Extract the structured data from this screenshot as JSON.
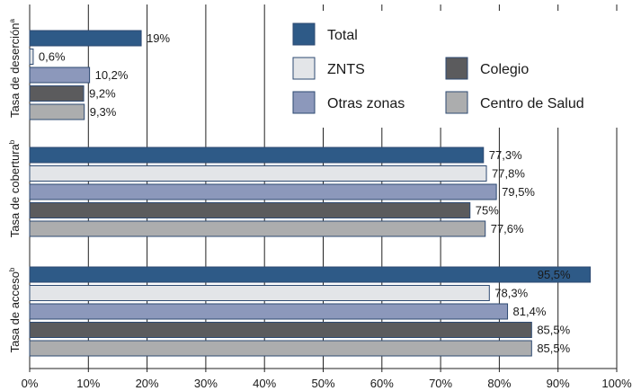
{
  "chart_data": {
    "type": "bar",
    "orientation": "horizontal",
    "xlim": [
      0,
      100
    ],
    "xticks": [
      "0%",
      "10%",
      "20%",
      "30%",
      "40%",
      "50%",
      "60%",
      "70%",
      "80%",
      "90%",
      "100%"
    ],
    "grid": "vertical",
    "legend_position": "top-right",
    "groups": [
      {
        "label": "Tasa de deserción",
        "sup": "a"
      },
      {
        "label": "Tasa de cobertura",
        "sup": "b"
      },
      {
        "label": "Tasa de acceso",
        "sup": "b"
      }
    ],
    "series": [
      {
        "name": "Total",
        "color": "#2e5a87",
        "values": [
          19,
          77.3,
          95.5
        ],
        "labels": [
          "19%",
          "77,3%",
          "95,5%"
        ]
      },
      {
        "name": "ZNTS",
        "color": "#e3e5e8",
        "values": [
          0.6,
          77.8,
          78.3
        ],
        "labels": [
          "0,6%",
          "77,8%",
          "78,3%"
        ]
      },
      {
        "name": "Otras zonas",
        "color": "#8c98bb",
        "values": [
          10.2,
          79.5,
          81.4
        ],
        "labels": [
          "10,2%",
          "79,5%",
          "81,4%"
        ]
      },
      {
        "name": "Colegio",
        "color": "#5b5b5d",
        "values": [
          9.2,
          75,
          85.5
        ],
        "labels": [
          "9,2%",
          "75%",
          "85,5%"
        ]
      },
      {
        "name": "Centro de Salud",
        "color": "#acadae",
        "values": [
          9.3,
          77.6,
          85.5
        ],
        "labels": [
          "9,3%",
          "77,6%",
          "85,5%"
        ]
      }
    ],
    "legend_order": [
      "Total",
      "Colegio",
      "ZNTS",
      "Centro de Salud",
      "Otras zonas"
    ]
  }
}
